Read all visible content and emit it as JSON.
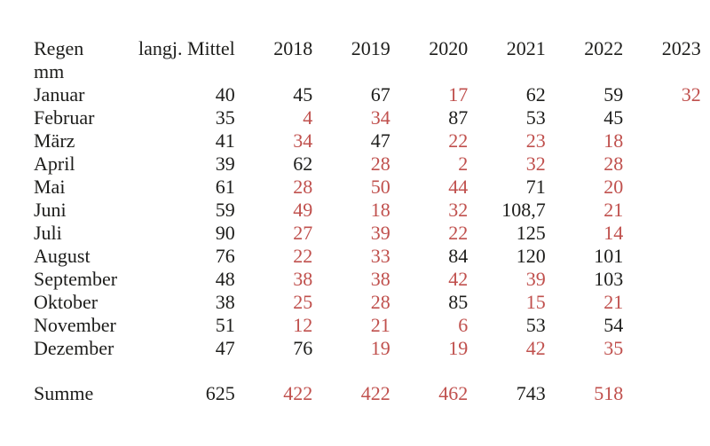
{
  "colors": {
    "ink": "#1d1d1b",
    "value_highlight": "#c0504d",
    "background": "#ffffff"
  },
  "table": {
    "title": "Regen",
    "unit": "mm",
    "columns": [
      "langj. Mittel",
      "2018",
      "2019",
      "2020",
      "2021",
      "2022",
      "2023"
    ],
    "rows": [
      {
        "label": "Januar",
        "values": [
          "40",
          "45",
          "67",
          "17",
          "62",
          "59",
          "32"
        ],
        "red": [
          false,
          false,
          false,
          true,
          false,
          false,
          true
        ]
      },
      {
        "label": "Februar",
        "values": [
          "35",
          "4",
          "34",
          "87",
          "53",
          "45",
          ""
        ],
        "red": [
          false,
          true,
          true,
          false,
          false,
          false,
          false
        ]
      },
      {
        "label": "März",
        "values": [
          "41",
          "34",
          "47",
          "22",
          "23",
          "18",
          ""
        ],
        "red": [
          false,
          true,
          false,
          true,
          true,
          true,
          false
        ]
      },
      {
        "label": "April",
        "values": [
          "39",
          "62",
          "28",
          "2",
          "32",
          "28",
          ""
        ],
        "red": [
          false,
          false,
          true,
          true,
          true,
          true,
          false
        ]
      },
      {
        "label": "Mai",
        "values": [
          "61",
          "28",
          "50",
          "44",
          "71",
          "20",
          ""
        ],
        "red": [
          false,
          true,
          true,
          true,
          false,
          true,
          false
        ]
      },
      {
        "label": "Juni",
        "values": [
          "59",
          "49",
          "18",
          "32",
          "108,7",
          "21",
          ""
        ],
        "red": [
          false,
          true,
          true,
          true,
          false,
          true,
          false
        ]
      },
      {
        "label": "Juli",
        "values": [
          "90",
          "27",
          "39",
          "22",
          "125",
          "14",
          ""
        ],
        "red": [
          false,
          true,
          true,
          true,
          false,
          true,
          false
        ]
      },
      {
        "label": "August",
        "values": [
          "76",
          "22",
          "33",
          "84",
          "120",
          "101",
          ""
        ],
        "red": [
          false,
          true,
          true,
          false,
          false,
          false,
          false
        ]
      },
      {
        "label": "September",
        "values": [
          "48",
          "38",
          "38",
          "42",
          "39",
          "103",
          ""
        ],
        "red": [
          false,
          true,
          true,
          true,
          true,
          false,
          false
        ]
      },
      {
        "label": "Oktober",
        "values": [
          "38",
          "25",
          "28",
          "85",
          "15",
          "21",
          ""
        ],
        "red": [
          false,
          true,
          true,
          false,
          true,
          true,
          false
        ]
      },
      {
        "label": "November",
        "values": [
          "51",
          "12",
          "21",
          "6",
          "53",
          "54",
          ""
        ],
        "red": [
          false,
          true,
          true,
          true,
          false,
          false,
          false
        ]
      },
      {
        "label": "Dezember",
        "values": [
          "47",
          "76",
          "19",
          "19",
          "42",
          "35",
          ""
        ],
        "red": [
          false,
          false,
          true,
          true,
          true,
          true,
          false
        ]
      }
    ],
    "summary": {
      "label": "Summe",
      "values": [
        "625",
        "422",
        "422",
        "462",
        "743",
        "518",
        ""
      ],
      "red": [
        false,
        true,
        true,
        true,
        false,
        true,
        false
      ]
    }
  }
}
